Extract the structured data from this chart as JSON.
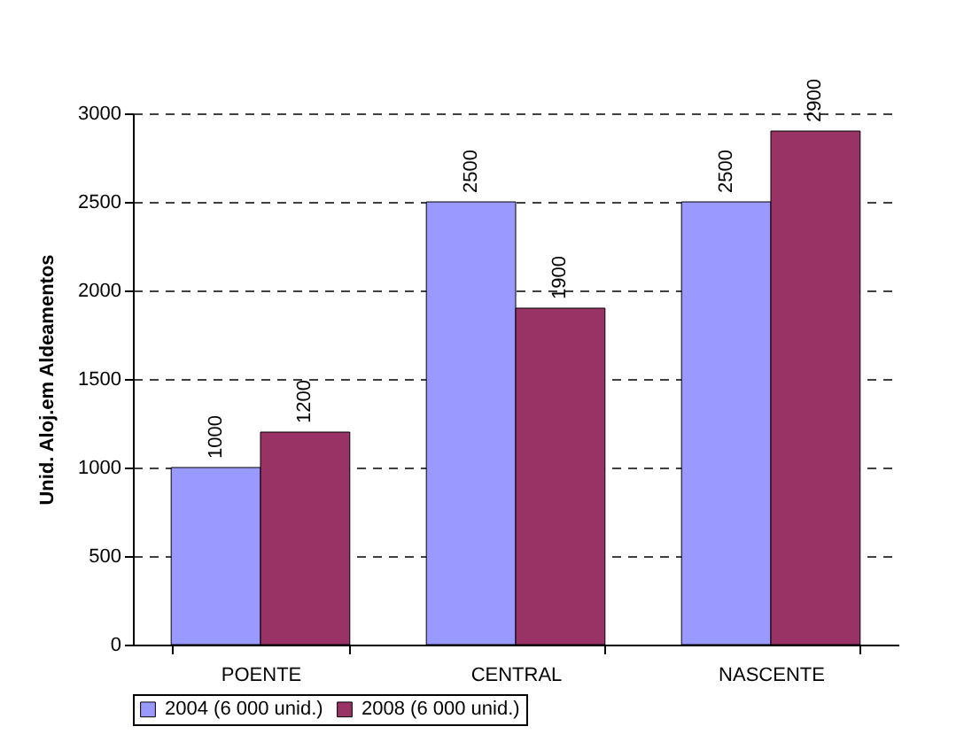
{
  "chart_data": {
    "type": "bar",
    "ylabel": "Unid. Aloj.em Aldeamentos",
    "categories": [
      "POENTE",
      "CENTRAL",
      "NASCENTE"
    ],
    "series": [
      {
        "name": "2004 (6 000 unid.)",
        "color": "#9999ff",
        "values": [
          1000,
          2500,
          2500
        ]
      },
      {
        "name": "2008 (6 000 unid.)",
        "color": "#993366",
        "values": [
          1200,
          1900,
          2900
        ]
      }
    ],
    "ylim": [
      0,
      3000
    ],
    "yticks": [
      0,
      500,
      1000,
      1500,
      2000,
      2500,
      3000
    ],
    "grid": "y",
    "legend": "bottom",
    "data_labels": true
  }
}
